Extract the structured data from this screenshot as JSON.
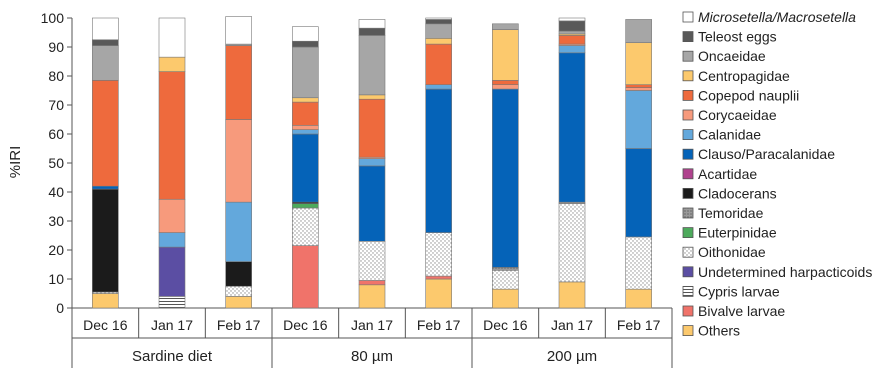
{
  "chart_data": {
    "type": "bar",
    "stacked": true,
    "ylabel": "%IRI",
    "ylim": [
      0,
      100
    ],
    "yticks": [
      "0",
      "10",
      "20",
      "30",
      "40",
      "50",
      "60",
      "70",
      "80",
      "90",
      "100"
    ],
    "grid": false,
    "legend_position": "right",
    "categories": [
      "Dec 16",
      "Jan 17",
      "Feb 17",
      "Dec 16",
      "Jan 17",
      "Feb 17",
      "Dec 16",
      "Jan 17",
      "Feb 17"
    ],
    "groups": [
      {
        "label": "Sardine diet",
        "span": [
          0,
          2
        ]
      },
      {
        "label": "80 µm",
        "span": [
          3,
          5
        ]
      },
      {
        "label": "200 µm",
        "span": [
          6,
          8
        ]
      }
    ],
    "series": [
      {
        "name": "Others",
        "color": "#fcc96d",
        "pattern": "solid",
        "values": [
          5,
          0,
          4,
          0,
          8,
          10,
          6.5,
          9,
          6.5
        ]
      },
      {
        "name": "Bivalve larvae",
        "color": "#f0736a",
        "pattern": "solid",
        "values": [
          0,
          0,
          0,
          21.5,
          1.5,
          1,
          0,
          0,
          0
        ]
      },
      {
        "name": "Cypris larvae",
        "color": "#ffffff",
        "pattern": "hlines",
        "values": [
          0,
          4,
          0,
          0,
          0,
          0,
          0,
          0,
          0
        ]
      },
      {
        "name": "Undetermined harpacticoids",
        "color": "#5b4ea3",
        "pattern": "solid",
        "values": [
          0,
          17,
          0,
          0,
          0,
          0,
          0,
          0,
          0
        ]
      },
      {
        "name": "Oithonidae",
        "color": "#ffffff",
        "pattern": "dots",
        "values": [
          0.5,
          0,
          3.5,
          13,
          13.5,
          15,
          6.5,
          27,
          18
        ]
      },
      {
        "name": "Euterpinidae",
        "color": "#4daa5c",
        "pattern": "solid",
        "values": [
          0,
          0,
          0,
          1.5,
          0,
          0,
          0,
          0,
          0
        ]
      },
      {
        "name": "Temoridae",
        "color": "#a6a6a6",
        "pattern": "dense",
        "values": [
          0,
          0,
          0,
          0,
          0,
          0,
          1,
          0.5,
          0
        ]
      },
      {
        "name": "Cladocerans",
        "color": "#1b1b1b",
        "pattern": "solid",
        "values": [
          35.5,
          0,
          8.5,
          0.5,
          0,
          0,
          0,
          0,
          0
        ]
      },
      {
        "name": "Acartidae",
        "color": "#b0428e",
        "pattern": "solid",
        "values": [
          0,
          0,
          0,
          0,
          0,
          0,
          0,
          0,
          0
        ]
      },
      {
        "name": "Clauso/Paracalanidae",
        "color": "#0563b8",
        "pattern": "solid",
        "values": [
          1,
          0,
          0,
          23.5,
          26,
          49.5,
          61.5,
          51.5,
          30.5
        ]
      },
      {
        "name": "Calanidae",
        "color": "#63a8dc",
        "pattern": "solid",
        "values": [
          0,
          5,
          20.5,
          1.5,
          2.5,
          1.5,
          0,
          2.5,
          20
        ]
      },
      {
        "name": "Corycaeidae",
        "color": "#f79a7c",
        "pattern": "solid",
        "values": [
          0,
          11.5,
          28.5,
          1.5,
          0.5,
          0,
          1.5,
          0.5,
          1
        ]
      },
      {
        "name": "Copepod nauplii",
        "color": "#ee6a3d",
        "pattern": "solid",
        "values": [
          36.5,
          44,
          25.5,
          8,
          20,
          14,
          1.5,
          3,
          1
        ]
      },
      {
        "name": "Centropagidae",
        "color": "#fcc96d",
        "pattern": "solid",
        "values": [
          0,
          5,
          0,
          1.5,
          1.5,
          2,
          17.5,
          0.5,
          14.5
        ]
      },
      {
        "name": "Oncaeidae",
        "color": "#a6a6a6",
        "pattern": "solid",
        "values": [
          12,
          0,
          0.5,
          17.5,
          20.5,
          5,
          2,
          1,
          8
        ]
      },
      {
        "name": "Teleost eggs",
        "color": "#595959",
        "pattern": "solid",
        "values": [
          2,
          0,
          0,
          2,
          2.5,
          1.5,
          0,
          3.5,
          0
        ]
      },
      {
        "name": "Microsetella/Macrosetella",
        "color": "#ffffff",
        "pattern": "solid",
        "values": [
          7.5,
          13.5,
          9.5,
          5,
          3,
          0.5,
          0,
          1,
          0
        ]
      }
    ],
    "legend_order": [
      "Microsetella/Macrosetella",
      "Teleost eggs",
      "Oncaeidae",
      "Centropagidae",
      "Copepod nauplii",
      "Corycaeidae",
      "Calanidae",
      "Clauso/Paracalanidae",
      "Acartidae",
      "Cladocerans",
      "Temoridae",
      "Euterpinidae",
      "Oithonidae",
      "Undetermined harpacticoids",
      "Cypris larvae",
      "Bivalve larvae",
      "Others"
    ],
    "legend_italic": [
      "Microsetella/Macrosetella"
    ]
  }
}
